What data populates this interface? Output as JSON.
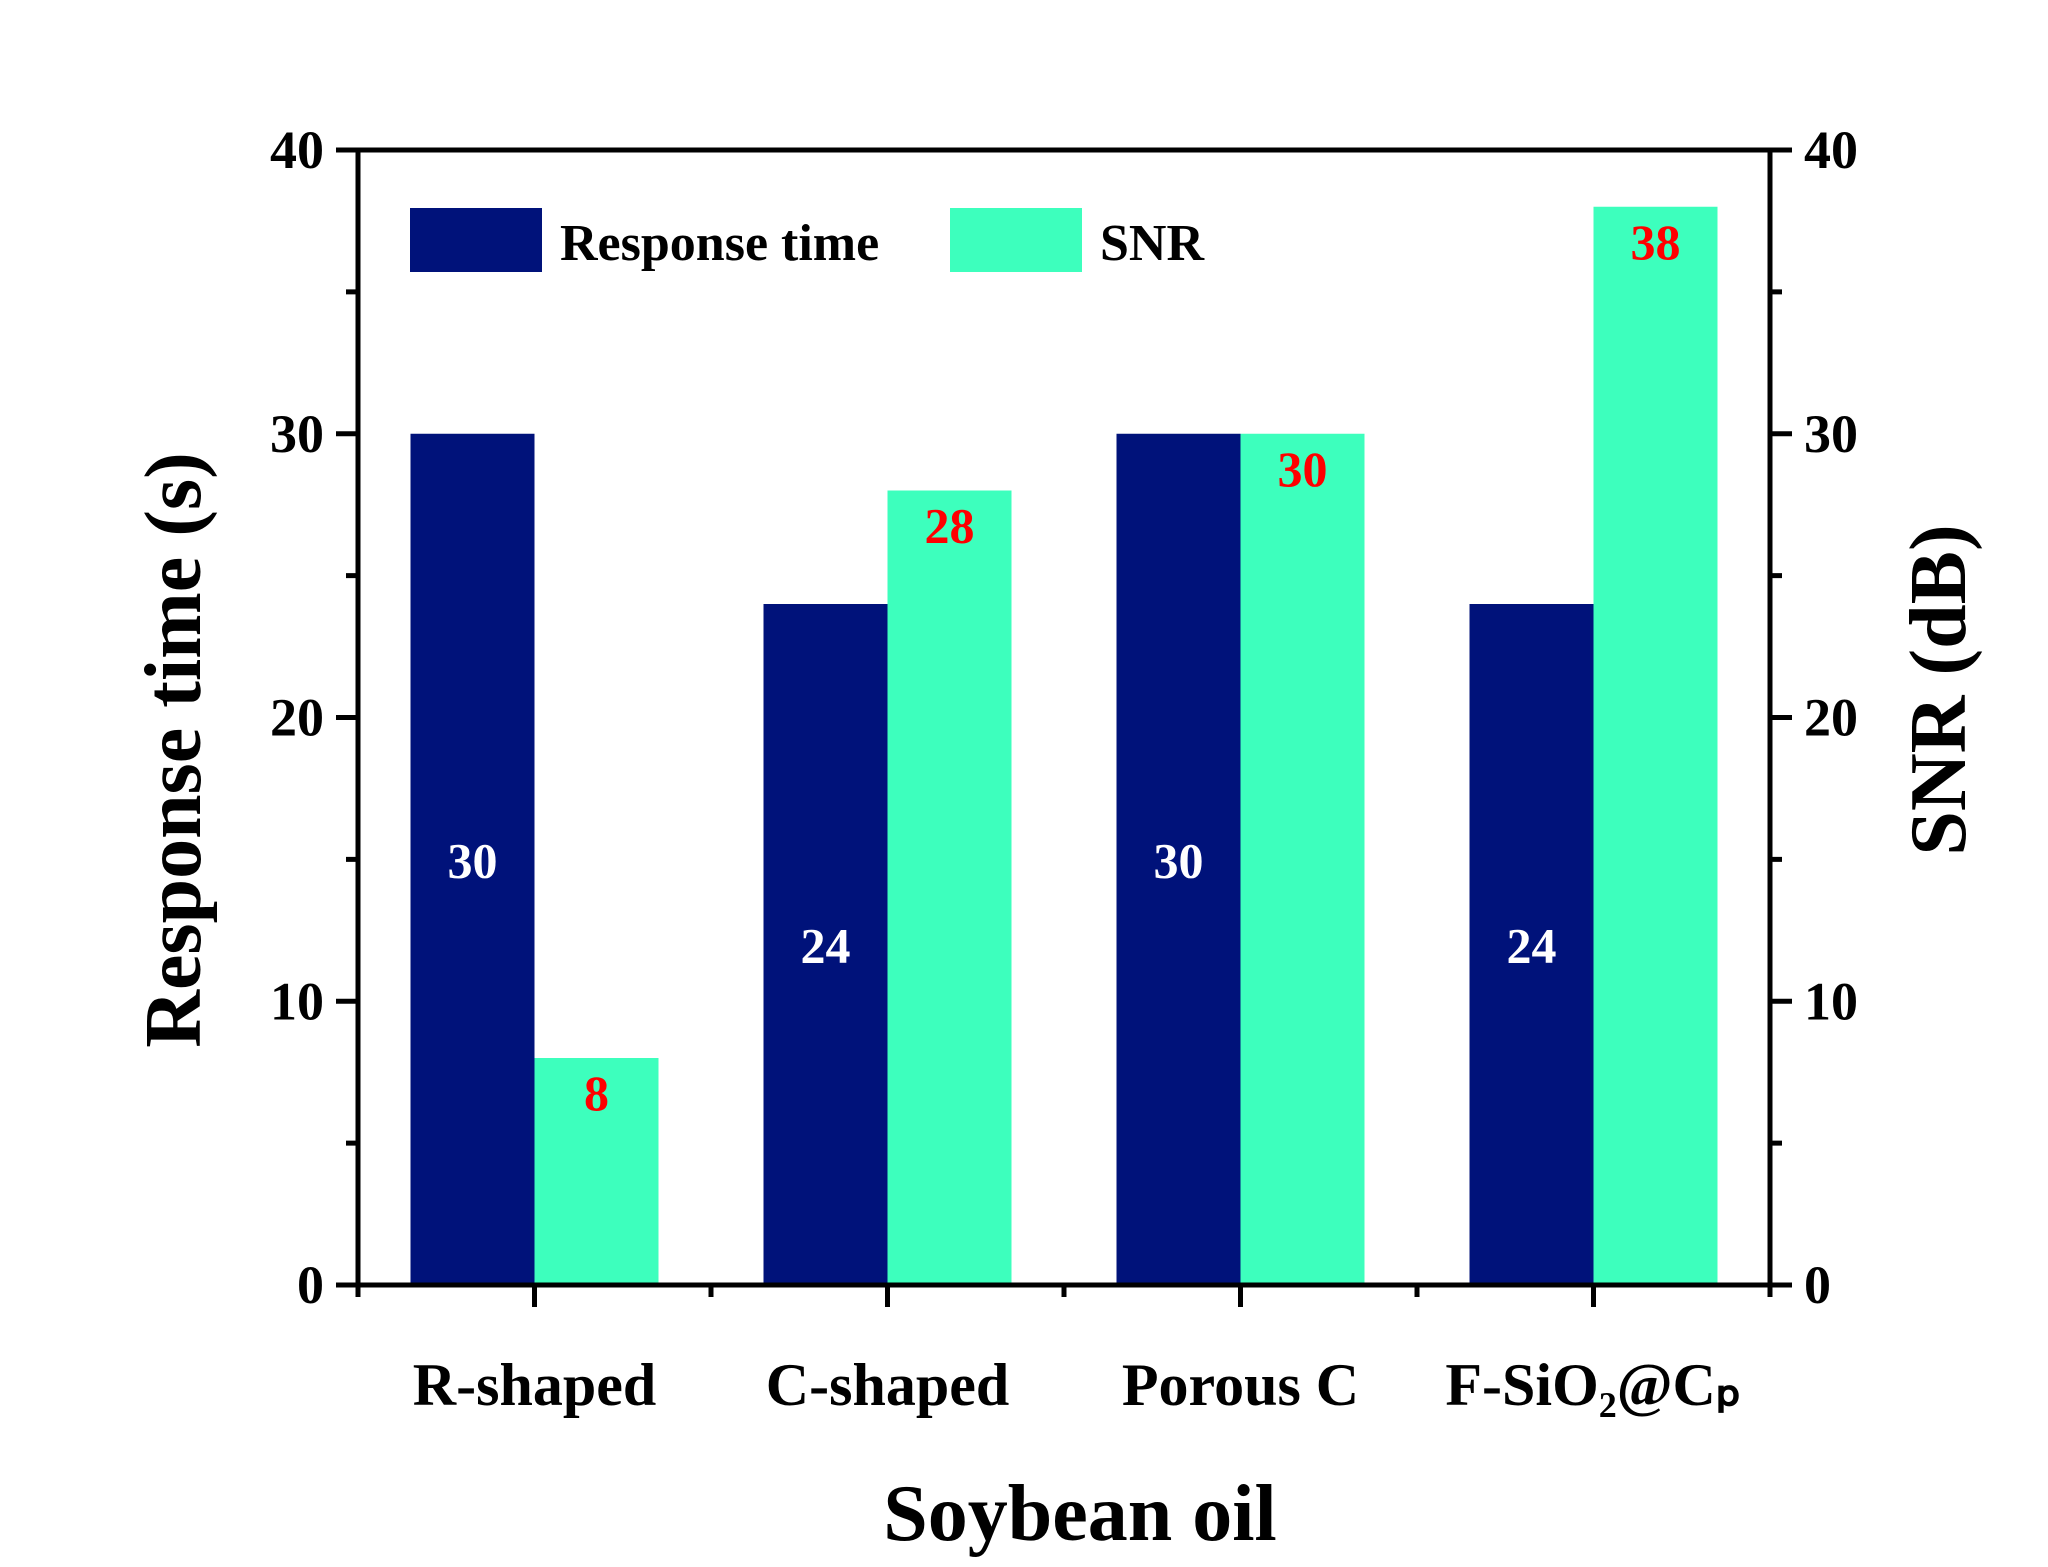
{
  "chart_data": {
    "type": "bar",
    "categories": [
      "R-shaped",
      "C-shaped",
      "Porous C",
      "F-SiO₂@Cₚ"
    ],
    "series": [
      {
        "name": "Response time",
        "axis": "left",
        "values": [
          30,
          24,
          30,
          24
        ],
        "color": "#00127a",
        "label_color": "#ffffff"
      },
      {
        "name": "SNR",
        "axis": "right",
        "values": [
          8,
          28,
          30,
          38
        ],
        "color": "#3dffbd",
        "label_color": "#ff0000"
      }
    ],
    "xlabel": "Soybean oil",
    "ylabel": "Response time (s)",
    "y2label": "SNR (dB)",
    "ylim": [
      0,
      40
    ],
    "y2lim": [
      0,
      40
    ],
    "yticks": [
      0,
      10,
      20,
      30,
      40
    ],
    "y2ticks": [
      0,
      10,
      20,
      30,
      40
    ],
    "yticks_labels": [
      "0",
      "10",
      "20",
      "30",
      "40"
    ],
    "y2ticks_labels": [
      "0",
      "10",
      "20",
      "30",
      "40"
    ],
    "legend_position": "top-left",
    "grid": false
  }
}
